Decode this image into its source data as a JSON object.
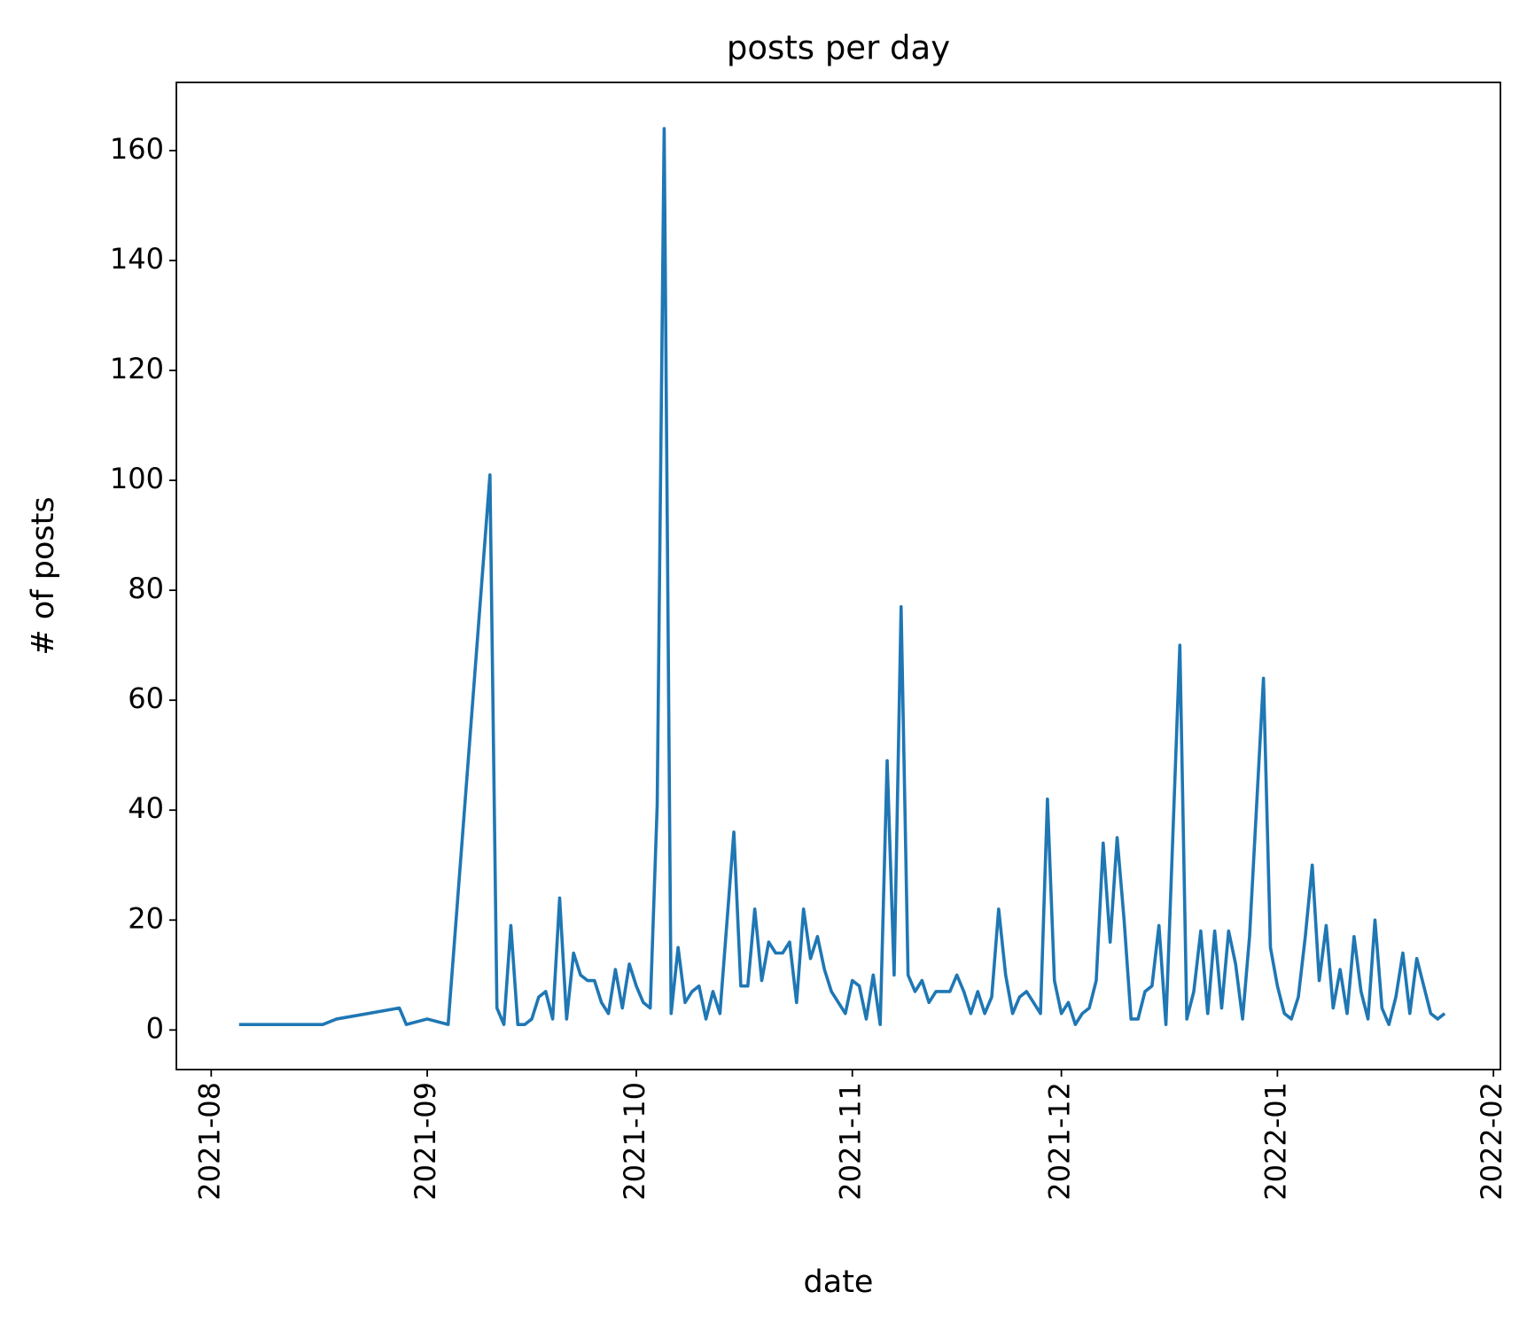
{
  "chart_data": {
    "type": "line",
    "title": "posts per day",
    "x_label": "date",
    "y_label": "# of posts",
    "x": [
      "2021-08-05",
      "2021-08-17",
      "2021-08-19",
      "2021-08-28",
      "2021-08-29",
      "2021-09-01",
      "2021-09-04",
      "2021-09-10",
      "2021-09-11",
      "2021-09-12",
      "2021-09-13",
      "2021-09-14",
      "2021-09-15",
      "2021-09-16",
      "2021-09-17",
      "2021-09-18",
      "2021-09-19",
      "2021-09-20",
      "2021-09-21",
      "2021-09-22",
      "2021-09-23",
      "2021-09-24",
      "2021-09-25",
      "2021-09-26",
      "2021-09-27",
      "2021-09-28",
      "2021-09-29",
      "2021-09-30",
      "2021-10-01",
      "2021-10-02",
      "2021-10-03",
      "2021-10-04",
      "2021-10-05",
      "2021-10-06",
      "2021-10-07",
      "2021-10-08",
      "2021-10-09",
      "2021-10-10",
      "2021-10-11",
      "2021-10-12",
      "2021-10-13",
      "2021-10-15",
      "2021-10-16",
      "2021-10-17",
      "2021-10-18",
      "2021-10-19",
      "2021-10-20",
      "2021-10-21",
      "2021-10-22",
      "2021-10-23",
      "2021-10-24",
      "2021-10-25",
      "2021-10-26",
      "2021-10-27",
      "2021-10-28",
      "2021-10-29",
      "2021-10-30",
      "2021-10-31",
      "2021-11-01",
      "2021-11-02",
      "2021-11-03",
      "2021-11-04",
      "2021-11-05",
      "2021-11-06",
      "2021-11-07",
      "2021-11-08",
      "2021-11-09",
      "2021-11-10",
      "2021-11-11",
      "2021-11-12",
      "2021-11-13",
      "2021-11-14",
      "2021-11-15",
      "2021-11-16",
      "2021-11-17",
      "2021-11-18",
      "2021-11-19",
      "2021-11-20",
      "2021-11-21",
      "2021-11-22",
      "2021-11-23",
      "2021-11-24",
      "2021-11-25",
      "2021-11-26",
      "2021-11-27",
      "2021-11-28",
      "2021-11-29",
      "2021-11-30",
      "2021-12-01",
      "2021-12-02",
      "2021-12-03",
      "2021-12-04",
      "2021-12-05",
      "2021-12-06",
      "2021-12-07",
      "2021-12-08",
      "2021-12-09",
      "2021-12-10",
      "2021-12-11",
      "2021-12-12",
      "2021-12-13",
      "2021-12-14",
      "2021-12-15",
      "2021-12-16",
      "2021-12-18",
      "2021-12-19",
      "2021-12-20",
      "2021-12-21",
      "2021-12-22",
      "2021-12-23",
      "2021-12-24",
      "2021-12-25",
      "2021-12-26",
      "2021-12-27",
      "2021-12-28",
      "2021-12-30",
      "2021-12-31",
      "2022-01-01",
      "2022-01-02",
      "2022-01-03",
      "2022-01-04",
      "2022-01-05",
      "2022-01-06",
      "2022-01-07",
      "2022-01-08",
      "2022-01-09",
      "2022-01-10",
      "2022-01-11",
      "2022-01-12",
      "2022-01-13",
      "2022-01-14",
      "2022-01-15",
      "2022-01-16",
      "2022-01-17",
      "2022-01-18",
      "2022-01-19",
      "2022-01-20",
      "2022-01-21",
      "2022-01-22",
      "2022-01-23",
      "2022-01-24",
      "2022-01-25"
    ],
    "series": [
      {
        "name": "posts",
        "color": "#1f77b4",
        "values": [
          1,
          1,
          2,
          4,
          1,
          2,
          1,
          101,
          4,
          1,
          19,
          1,
          1,
          2,
          6,
          7,
          2,
          24,
          2,
          14,
          10,
          9,
          9,
          5,
          3,
          11,
          4,
          12,
          8,
          5,
          4,
          41,
          164,
          3,
          15,
          5,
          7,
          8,
          2,
          7,
          3,
          36,
          8,
          8,
          22,
          9,
          16,
          14,
          14,
          16,
          5,
          22,
          13,
          17,
          11,
          7,
          5,
          3,
          9,
          8,
          2,
          10,
          1,
          49,
          10,
          77,
          10,
          7,
          9,
          5,
          7,
          7,
          7,
          10,
          7,
          3,
          7,
          3,
          6,
          22,
          10,
          3,
          6,
          7,
          5,
          3,
          42,
          9,
          3,
          5,
          1,
          3,
          4,
          9,
          34,
          16,
          35,
          20,
          2,
          2,
          7,
          8,
          19,
          1,
          70,
          2,
          7,
          18,
          3,
          18,
          4,
          18,
          12,
          2,
          17,
          64,
          15,
          8,
          3,
          2,
          6,
          17,
          30,
          9,
          19,
          4,
          11,
          3,
          17,
          7,
          2,
          20,
          4,
          1,
          6,
          14,
          3,
          13,
          8,
          3,
          2,
          3
        ]
      }
    ],
    "xlim": [
      "2021-07-27",
      "2022-02-02"
    ],
    "xticks": [
      {
        "value": "2021-08-01",
        "label": "2021-08"
      },
      {
        "value": "2021-09-01",
        "label": "2021-09"
      },
      {
        "value": "2021-10-01",
        "label": "2021-10"
      },
      {
        "value": "2021-11-01",
        "label": "2021-11"
      },
      {
        "value": "2021-12-01",
        "label": "2021-12"
      },
      {
        "value": "2022-01-01",
        "label": "2022-01"
      },
      {
        "value": "2022-02-01",
        "label": "2022-02"
      }
    ],
    "ylim": [
      -7.2,
      172.4
    ],
    "yticks": [
      0,
      20,
      40,
      60,
      80,
      100,
      120,
      140,
      160
    ],
    "grid": false
  }
}
